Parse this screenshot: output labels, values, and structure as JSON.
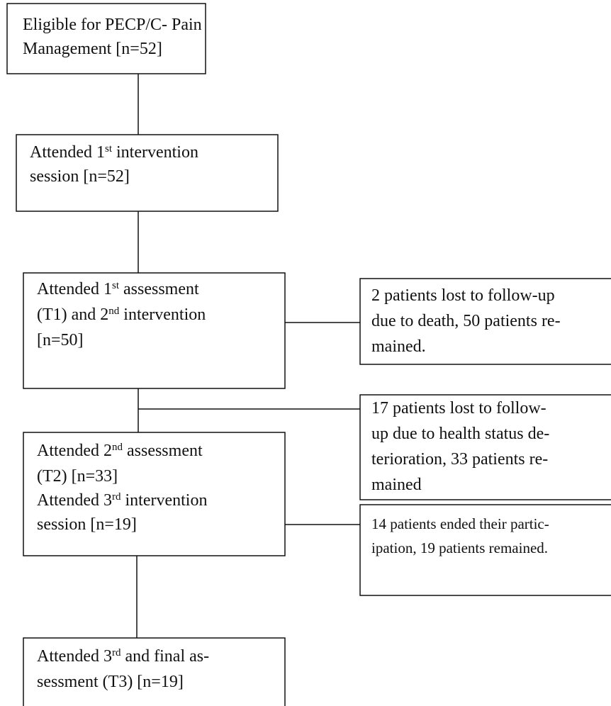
{
  "nodes": [
    {
      "lines": [
        [
          "Eligible for PECP/C- Pain"
        ],
        [
          "Management [n=52]"
        ]
      ]
    },
    {
      "lines": [
        [
          "Attended 1",
          {
            "sup": "st"
          },
          " intervention"
        ],
        [
          "session [n=52]"
        ]
      ]
    },
    {
      "lines": [
        [
          "Attended 1",
          {
            "sup": "st"
          },
          " assessment"
        ],
        [
          "(T1) and 2",
          {
            "sup": "nd"
          },
          " intervention"
        ],
        [
          "[n=50]"
        ]
      ]
    },
    {
      "lines": [
        [
          "Attended 2",
          {
            "sup": "nd"
          },
          " assessment"
        ],
        [
          "(T2) [n=33]"
        ],
        [
          " Attended 3",
          {
            "sup": "rd"
          },
          " intervention"
        ],
        [
          "session [n=19]"
        ]
      ]
    },
    {
      "lines": [
        [
          "Attended 3",
          {
            "sup": "rd"
          },
          " and final as-"
        ],
        [
          "sessment (T3) [n=19]"
        ]
      ]
    }
  ],
  "exclusions": [
    {
      "lines": [
        [
          "2 patients lost to follow-up"
        ],
        [
          "due to death, 50 patients re-"
        ],
        [
          "mained."
        ]
      ]
    },
    {
      "lines": [
        [
          "17 patients lost to follow-"
        ],
        [
          "up due to health status de-"
        ],
        [
          "terioration, 33 patients re-"
        ],
        [
          "mained"
        ]
      ]
    },
    {
      "lines": [
        [
          "14 patients ended their partic-"
        ],
        [
          "ipation, 19 patients remained."
        ]
      ]
    }
  ]
}
